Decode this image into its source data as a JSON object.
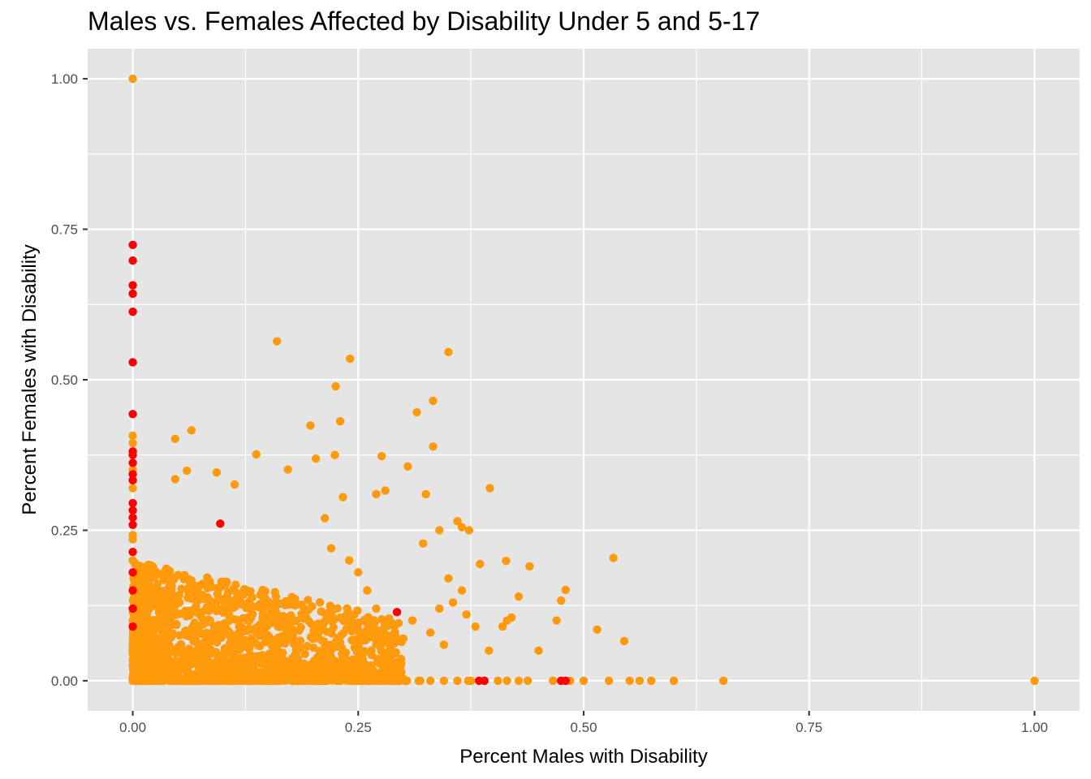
{
  "chart_data": {
    "type": "scatter",
    "title": "Males vs. Females Affected by Disability Under 5 and 5-17",
    "xlabel": "Percent Males with Disability",
    "ylabel": "Percent Females with Disability",
    "xlim": [
      -0.05,
      1.05
    ],
    "ylim": [
      -0.05,
      1.05
    ],
    "x_ticks": [
      "0.00",
      "0.25",
      "0.50",
      "0.75",
      "1.00"
    ],
    "y_ticks": [
      "0.00",
      "0.25",
      "0.50",
      "0.75",
      "1.00"
    ],
    "grid": true,
    "legend": "none",
    "colors": {
      "panel": "#e5e5e5",
      "grid": "#ffffff",
      "series_red": "#ff0000",
      "series_orange": "#ff9a0c"
    },
    "series": [
      {
        "color": "#ff0000",
        "points": [
          [
            0,
            0.724
          ],
          [
            0,
            0.698
          ],
          [
            0,
            0.657
          ],
          [
            0,
            0.643
          ],
          [
            0,
            0.613
          ],
          [
            0,
            0.529
          ],
          [
            0,
            0.443
          ],
          [
            0,
            0.381
          ],
          [
            0,
            0.375
          ],
          [
            0,
            0.362
          ],
          [
            0,
            0.343
          ],
          [
            0,
            0.333
          ],
          [
            0,
            0.295
          ],
          [
            0,
            0.283
          ],
          [
            0,
            0.271
          ],
          [
            0,
            0.259
          ],
          [
            0,
            0.214
          ],
          [
            0,
            0.18
          ],
          [
            0,
            0.15
          ],
          [
            0,
            0.12
          ],
          [
            0,
            0.09
          ],
          [
            0.097,
            0.261
          ],
          [
            0.293,
            0.114
          ],
          [
            0.384,
            0.0
          ],
          [
            0.39,
            0.0
          ],
          [
            0.475,
            0.0
          ],
          [
            0.48,
            0.0
          ]
        ]
      },
      {
        "color": "#ff9a0c",
        "points": [
          [
            0,
            1.0
          ],
          [
            0,
            0.407
          ],
          [
            0,
            0.395
          ],
          [
            0,
            0.351
          ],
          [
            0,
            0.32
          ],
          [
            0,
            0.242
          ],
          [
            0,
            0.235
          ],
          [
            0,
            0.2
          ],
          [
            0,
            0.1
          ],
          [
            0,
            0.05
          ],
          [
            0,
            0.0
          ],
          [
            1.0,
            0.0
          ],
          [
            0.655,
            0.0
          ],
          [
            0.6,
            0.0
          ],
          [
            0.575,
            0.0
          ],
          [
            0.562,
            0.0
          ],
          [
            0.551,
            0.0
          ],
          [
            0.528,
            0.0
          ],
          [
            0.5,
            0.0
          ],
          [
            0.485,
            0.0
          ],
          [
            0.466,
            0.0
          ],
          [
            0.438,
            0.0
          ],
          [
            0.428,
            0.0
          ],
          [
            0.415,
            0.0
          ],
          [
            0.405,
            0.0
          ],
          [
            0.372,
            0.0
          ],
          [
            0.36,
            0.0
          ],
          [
            0.345,
            0.0
          ],
          [
            0.33,
            0.0
          ],
          [
            0.16,
            0.564
          ],
          [
            0.35,
            0.546
          ],
          [
            0.241,
            0.535
          ],
          [
            0.225,
            0.489
          ],
          [
            0.333,
            0.465
          ],
          [
            0.315,
            0.446
          ],
          [
            0.23,
            0.431
          ],
          [
            0.197,
            0.424
          ],
          [
            0.065,
            0.416
          ],
          [
            0.047,
            0.402
          ],
          [
            0.333,
            0.389
          ],
          [
            0.137,
            0.376
          ],
          [
            0.224,
            0.375
          ],
          [
            0.276,
            0.373
          ],
          [
            0.203,
            0.369
          ],
          [
            0.305,
            0.356
          ],
          [
            0.06,
            0.349
          ],
          [
            0.172,
            0.351
          ],
          [
            0.093,
            0.346
          ],
          [
            0.047,
            0.335
          ],
          [
            0.113,
            0.326
          ],
          [
            0.396,
            0.32
          ],
          [
            0.233,
            0.305
          ],
          [
            0.27,
            0.31
          ],
          [
            0.28,
            0.316
          ],
          [
            0.325,
            0.31
          ],
          [
            0.213,
            0.27
          ],
          [
            0.36,
            0.265
          ],
          [
            0.34,
            0.25
          ],
          [
            0.365,
            0.255
          ],
          [
            0.373,
            0.25
          ],
          [
            0.322,
            0.228
          ],
          [
            0.385,
            0.194
          ],
          [
            0.414,
            0.199
          ],
          [
            0.44,
            0.19
          ],
          [
            0.533,
            0.204
          ],
          [
            0.42,
            0.105
          ],
          [
            0.428,
            0.14
          ],
          [
            0.415,
            0.1
          ],
          [
            0.41,
            0.09
          ],
          [
            0.47,
            0.1
          ],
          [
            0.475,
            0.133
          ],
          [
            0.48,
            0.151
          ],
          [
            0.515,
            0.085
          ],
          [
            0.545,
            0.066
          ],
          [
            0.45,
            0.05
          ],
          [
            0.395,
            0.05
          ],
          [
            0.375,
            0.0
          ],
          [
            0.355,
            0.13
          ],
          [
            0.35,
            0.17
          ],
          [
            0.365,
            0.15
          ],
          [
            0.37,
            0.11
          ],
          [
            0.38,
            0.09
          ],
          [
            0.34,
            0.12
          ],
          [
            0.33,
            0.08
          ],
          [
            0.345,
            0.06
          ],
          [
            0.31,
            0.1
          ],
          [
            0.3,
            0.07
          ],
          [
            0.29,
            0.09
          ],
          [
            0.27,
            0.12
          ],
          [
            0.26,
            0.15
          ],
          [
            0.25,
            0.18
          ],
          [
            0.24,
            0.2
          ],
          [
            0.22,
            0.22
          ]
        ]
      }
    ]
  }
}
